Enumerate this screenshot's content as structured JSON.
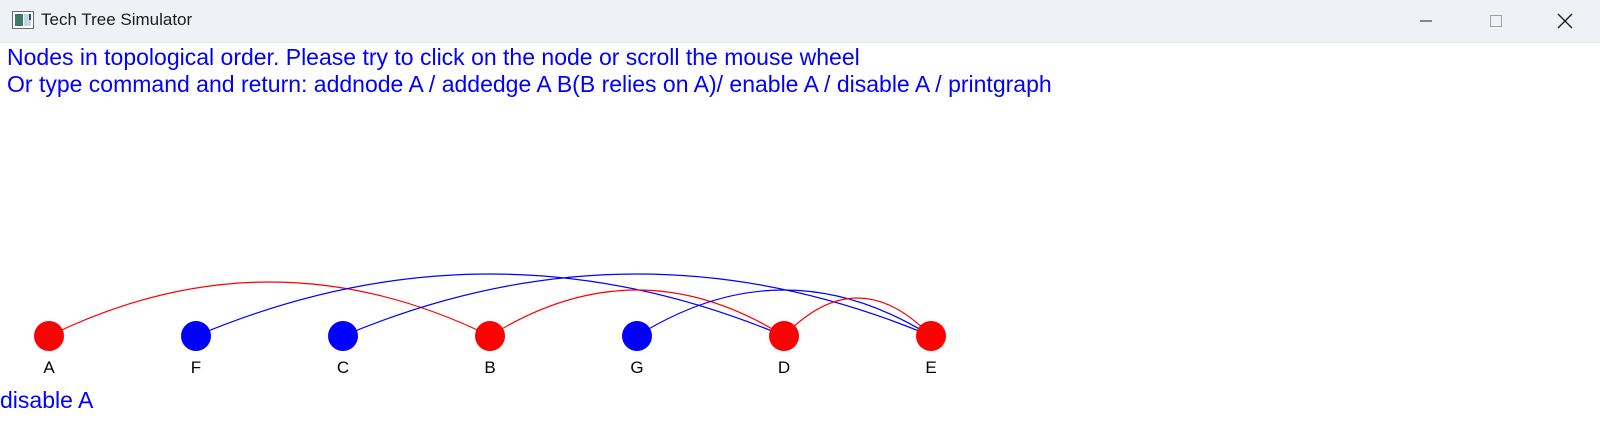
{
  "window": {
    "title": "Tech Tree Simulator",
    "icon": "app-icon"
  },
  "controls": {
    "minimize_icon": "minimize-icon",
    "maximize_icon": "maximize-icon",
    "close_icon": "close-icon"
  },
  "instructions": {
    "line1": "Nodes in topological order. Please try to click on the node or scroll the mouse wheel",
    "line2": "Or type command and return: addnode A / addedge A B(B relies on A)/ enable A / disable A / printgraph"
  },
  "colors": {
    "text": "#0000ff",
    "enabled": "#0000ff",
    "disabled": "#ff0000",
    "label": "#000000"
  },
  "graph": {
    "nodes": [
      {
        "id": "A",
        "label": "A",
        "state": "disabled"
      },
      {
        "id": "F",
        "label": "F",
        "state": "enabled"
      },
      {
        "id": "C",
        "label": "C",
        "state": "enabled"
      },
      {
        "id": "B",
        "label": "B",
        "state": "disabled"
      },
      {
        "id": "G",
        "label": "G",
        "state": "enabled"
      },
      {
        "id": "D",
        "label": "D",
        "state": "disabled"
      },
      {
        "id": "E",
        "label": "E",
        "state": "disabled"
      }
    ],
    "edges": [
      {
        "from": "A",
        "to": "B",
        "color": "disabled"
      },
      {
        "from": "F",
        "to": "D",
        "color": "enabled"
      },
      {
        "from": "C",
        "to": "E",
        "color": "enabled"
      },
      {
        "from": "B",
        "to": "D",
        "color": "disabled"
      },
      {
        "from": "G",
        "to": "E",
        "color": "enabled"
      },
      {
        "from": "D",
        "to": "E",
        "color": "disabled"
      }
    ]
  },
  "command": {
    "text": "disable A"
  }
}
